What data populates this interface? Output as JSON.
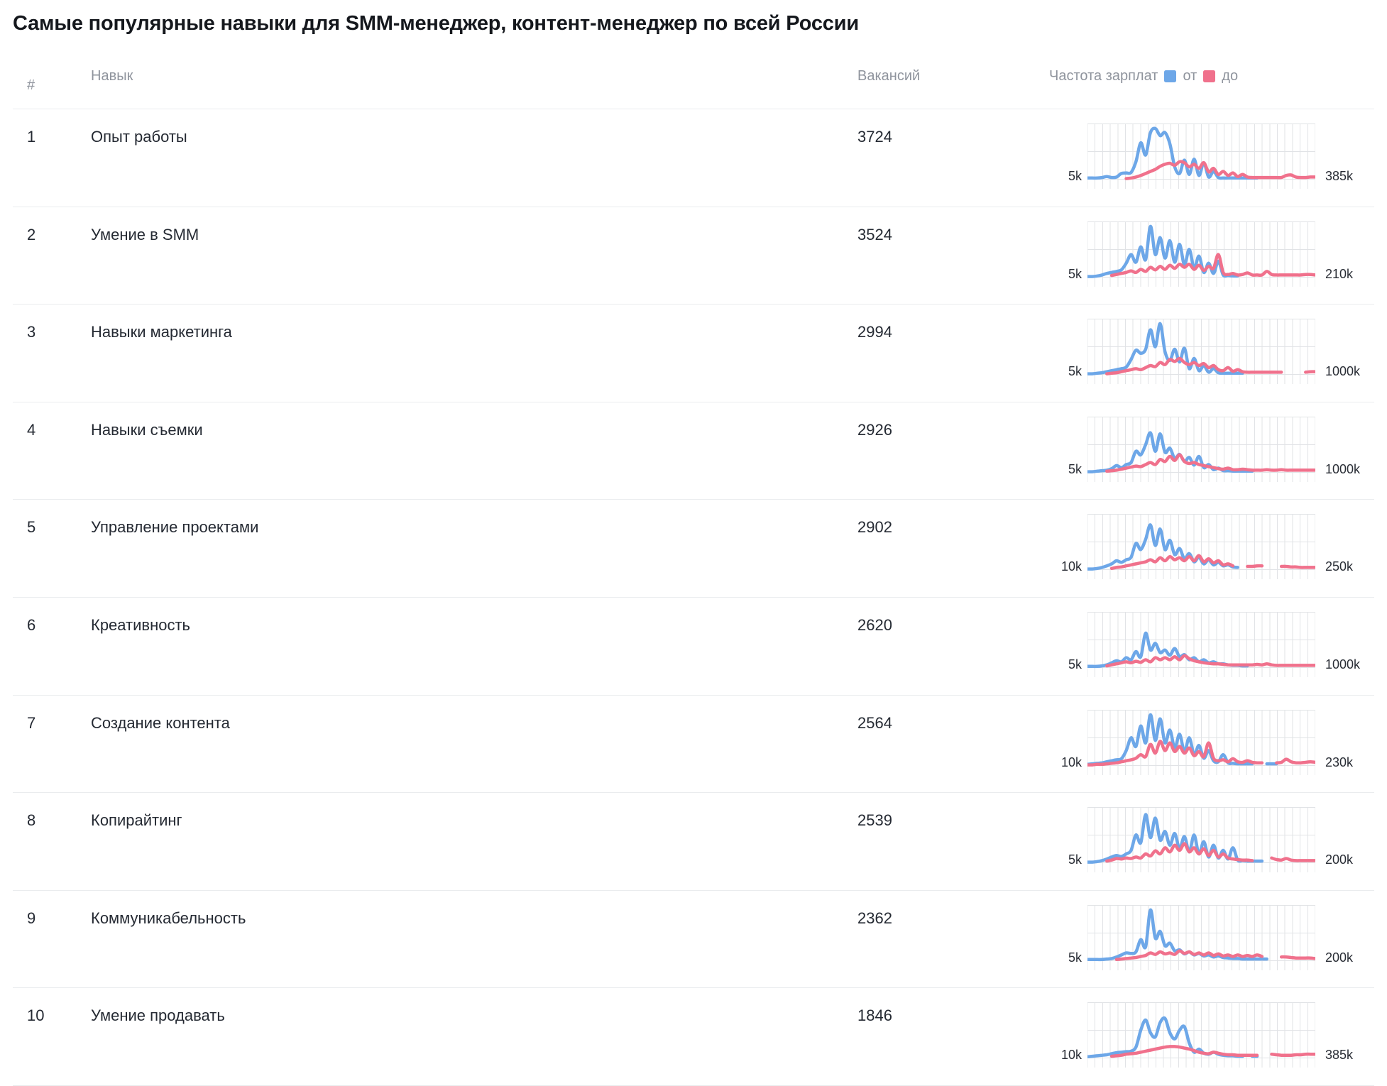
{
  "title": "Самые популярные навыки для SMM-менеджер, контент-менеджер по всей России",
  "headers": {
    "rank": "#",
    "skill": "Навык",
    "vacancies": "Вакансий",
    "salary_frequency": "Частота зарплат",
    "legend_from": "от",
    "legend_to": "до"
  },
  "colors": {
    "from_line": "#6da7e8",
    "to_line": "#f0718c",
    "grid": "#e1e3e6",
    "separator": "#eaecee",
    "header_text": "#8f949d",
    "body_text": "#252a33"
  },
  "chart_data": {
    "type": "line",
    "value_scale": "relative frequency 0-100 (percent of row maximum)",
    "legend": [
      "от",
      "до"
    ],
    "grid": true,
    "rows": [
      {
        "rank": 1,
        "skill": "Опыт работы",
        "vacancies": "3724",
        "salary_min_label": "5k",
        "salary_max_label": "385k",
        "from": [
          3,
          3,
          3,
          4,
          6,
          4,
          5,
          12,
          13,
          14,
          35,
          72,
          48,
          92,
          100,
          86,
          92,
          70,
          25,
          12,
          38,
          10,
          40,
          8,
          33,
          5,
          16,
          4,
          3,
          3,
          3,
          3,
          3,
          3,
          3,
          3,
          null,
          null,
          null,
          null,
          null,
          null,
          null,
          null,
          null,
          null,
          null,
          null
        ],
        "to": [
          null,
          null,
          null,
          null,
          null,
          null,
          null,
          null,
          2,
          3,
          5,
          8,
          12,
          16,
          20,
          26,
          30,
          32,
          28,
          35,
          33,
          25,
          30,
          22,
          33,
          15,
          22,
          10,
          16,
          8,
          13,
          6,
          10,
          5,
          4,
          4,
          4,
          4,
          4,
          4,
          4,
          8,
          9,
          5,
          4,
          4,
          5,
          5
        ]
      },
      {
        "rank": 2,
        "skill": "Умение в SMM",
        "vacancies": "3524",
        "salary_min_label": "5k",
        "salary_max_label": "210k",
        "from": [
          2,
          2,
          3,
          5,
          8,
          10,
          12,
          15,
          28,
          45,
          30,
          60,
          35,
          100,
          45,
          78,
          38,
          72,
          30,
          65,
          25,
          55,
          18,
          42,
          10,
          28,
          8,
          32,
          5,
          4,
          3,
          3,
          null,
          null,
          null,
          null,
          null,
          null,
          null,
          null,
          null,
          null,
          null,
          null,
          null,
          null,
          null,
          null
        ],
        "to": [
          null,
          null,
          null,
          null,
          null,
          4,
          6,
          8,
          10,
          13,
          10,
          16,
          12,
          20,
          15,
          22,
          16,
          24,
          18,
          26,
          20,
          26,
          16,
          24,
          14,
          22,
          18,
          45,
          10,
          6,
          8,
          5,
          6,
          9,
          5,
          5,
          5,
          12,
          6,
          5,
          5,
          5,
          5,
          5,
          5,
          6,
          6,
          5
        ]
      },
      {
        "rank": 3,
        "skill": "Навыки маркетинга",
        "vacancies": "2994",
        "salary_min_label": "5k",
        "salary_max_label": "1000k",
        "from": [
          2,
          2,
          3,
          4,
          6,
          8,
          10,
          12,
          15,
          30,
          48,
          42,
          50,
          88,
          55,
          100,
          45,
          28,
          50,
          25,
          52,
          12,
          32,
          8,
          18,
          5,
          12,
          4,
          3,
          3,
          3,
          3,
          3,
          null,
          null,
          null,
          null,
          null,
          null,
          null,
          null,
          null,
          null,
          null,
          null,
          null,
          null,
          null
        ],
        "to": [
          null,
          null,
          null,
          null,
          2,
          3,
          4,
          6,
          8,
          10,
          12,
          10,
          14,
          18,
          16,
          24,
          20,
          30,
          26,
          32,
          24,
          20,
          24,
          18,
          22,
          14,
          18,
          10,
          8,
          14,
          7,
          10,
          6,
          5,
          5,
          5,
          5,
          5,
          5,
          5,
          5,
          null,
          null,
          null,
          null,
          5,
          6,
          6
        ]
      },
      {
        "rank": 4,
        "skill": "Навыки съемки",
        "vacancies": "2926",
        "salary_min_label": "5k",
        "salary_max_label": "1000k",
        "from": [
          2,
          2,
          3,
          4,
          5,
          8,
          14,
          10,
          16,
          20,
          42,
          35,
          55,
          78,
          42,
          76,
          40,
          48,
          28,
          36,
          22,
          30,
          15,
          32,
          10,
          16,
          6,
          9,
          4,
          4,
          3,
          3,
          3,
          3,
          3,
          null,
          null,
          null,
          null,
          null,
          null,
          null,
          null,
          null,
          null,
          null,
          null,
          null
        ],
        "to": [
          null,
          null,
          null,
          null,
          3,
          4,
          5,
          7,
          9,
          11,
          13,
          12,
          16,
          20,
          16,
          26,
          22,
          32,
          24,
          35,
          22,
          18,
          20,
          16,
          14,
          12,
          10,
          8,
          7,
          9,
          6,
          6,
          7,
          6,
          5,
          5,
          5,
          6,
          5,
          5,
          6,
          5,
          5,
          5,
          5,
          5,
          5,
          5
        ]
      },
      {
        "rank": 5,
        "skill": "Управление проектами",
        "vacancies": "2902",
        "salary_min_label": "10k",
        "salary_max_label": "250k",
        "from": [
          2,
          2,
          3,
          5,
          8,
          12,
          18,
          15,
          20,
          25,
          52,
          40,
          60,
          88,
          48,
          80,
          40,
          58,
          30,
          42,
          22,
          32,
          16,
          25,
          12,
          20,
          10,
          15,
          8,
          10,
          6,
          5,
          null,
          null,
          null,
          null,
          null,
          null,
          null,
          null,
          null,
          null,
          null,
          null,
          null,
          null,
          null,
          null
        ],
        "to": [
          null,
          null,
          null,
          null,
          null,
          3,
          5,
          6,
          8,
          10,
          12,
          14,
          16,
          20,
          16,
          24,
          18,
          26,
          20,
          24,
          18,
          26,
          18,
          28,
          16,
          22,
          14,
          18,
          10,
          12,
          8,
          null,
          null,
          7,
          7,
          8,
          8,
          null,
          null,
          null,
          7,
          7,
          6,
          6,
          5,
          5,
          5,
          5
        ]
      },
      {
        "rank": 6,
        "skill": "Креативность",
        "vacancies": "2620",
        "salary_min_label": "5k",
        "salary_max_label": "1000k",
        "from": [
          3,
          3,
          3,
          4,
          6,
          10,
          14,
          12,
          20,
          16,
          32,
          22,
          68,
          35,
          48,
          30,
          35,
          25,
          38,
          22,
          26,
          16,
          20,
          12,
          16,
          10,
          12,
          8,
          8,
          6,
          5,
          5,
          4,
          4,
          null,
          null,
          null,
          null,
          null,
          null,
          null,
          null,
          null,
          null,
          null,
          null,
          null,
          null
        ],
        "to": [
          null,
          null,
          null,
          null,
          4,
          6,
          8,
          10,
          12,
          10,
          13,
          11,
          16,
          12,
          20,
          16,
          20,
          16,
          22,
          16,
          24,
          18,
          14,
          12,
          10,
          9,
          8,
          8,
          7,
          6,
          6,
          6,
          6,
          6,
          6,
          7,
          6,
          8,
          6,
          5,
          5,
          5,
          5,
          5,
          5,
          5,
          5,
          5
        ]
      },
      {
        "rank": 7,
        "skill": "Создание контента",
        "vacancies": "2564",
        "salary_min_label": "10k",
        "salary_max_label": "230k",
        "from": [
          3,
          4,
          5,
          6,
          8,
          10,
          12,
          14,
          30,
          55,
          38,
          78,
          45,
          100,
          50,
          92,
          45,
          70,
          35,
          62,
          28,
          55,
          22,
          40,
          15,
          30,
          10,
          8,
          22,
          6,
          5,
          4,
          4,
          4,
          4,
          null,
          null,
          4,
          4,
          4,
          null,
          null,
          null,
          null,
          null,
          null,
          null,
          null
        ],
        "to": [
          2,
          2,
          3,
          3,
          4,
          5,
          6,
          8,
          10,
          12,
          15,
          22,
          18,
          42,
          25,
          48,
          30,
          45,
          28,
          38,
          25,
          35,
          20,
          28,
          18,
          45,
          15,
          10,
          12,
          8,
          14,
          8,
          7,
          10,
          7,
          6,
          6,
          null,
          null,
          6,
          7,
          13,
          8,
          6,
          6,
          7,
          8,
          7
        ]
      },
      {
        "rank": 8,
        "skill": "Копирайтинг",
        "vacancies": "2539",
        "salary_min_label": "5k",
        "salary_max_label": "200k",
        "from": [
          2,
          2,
          3,
          5,
          8,
          12,
          15,
          13,
          18,
          25,
          55,
          40,
          95,
          50,
          88,
          45,
          62,
          35,
          58,
          28,
          52,
          22,
          55,
          18,
          42,
          12,
          35,
          10,
          25,
          8,
          30,
          6,
          5,
          4,
          4,
          4,
          4,
          null,
          null,
          null,
          null,
          null,
          null,
          null,
          null,
          null,
          null,
          null
        ],
        "to": [
          null,
          null,
          null,
          null,
          4,
          6,
          9,
          8,
          10,
          9,
          12,
          10,
          18,
          14,
          24,
          18,
          30,
          22,
          35,
          25,
          38,
          22,
          30,
          18,
          28,
          15,
          25,
          12,
          18,
          10,
          8,
          7,
          6,
          6,
          5,
          null,
          null,
          null,
          10,
          7,
          6,
          9,
          6,
          5,
          5,
          5,
          5,
          5
        ]
      },
      {
        "rank": 9,
        "skill": "Коммуникабельность",
        "vacancies": "2362",
        "salary_min_label": "5k",
        "salary_max_label": "200k",
        "from": [
          3,
          3,
          3,
          3,
          4,
          5,
          8,
          12,
          16,
          15,
          18,
          42,
          28,
          100,
          45,
          58,
          30,
          35,
          20,
          22,
          14,
          18,
          12,
          15,
          10,
          12,
          8,
          10,
          7,
          6,
          5,
          5,
          4,
          4,
          4,
          4,
          4,
          4,
          null,
          null,
          null,
          null,
          null,
          null,
          null,
          null,
          null,
          null
        ],
        "to": [
          null,
          null,
          null,
          null,
          null,
          null,
          3,
          4,
          5,
          6,
          7,
          9,
          11,
          16,
          13,
          18,
          14,
          16,
          13,
          20,
          15,
          18,
          13,
          16,
          12,
          16,
          11,
          14,
          10,
          12,
          9,
          12,
          9,
          11,
          9,
          12,
          9,
          null,
          null,
          null,
          8,
          8,
          7,
          6,
          6,
          6,
          6,
          5
        ]
      },
      {
        "rank": 10,
        "skill": "Умение продавать",
        "vacancies": "1846",
        "salary_min_label": "10k",
        "salary_max_label": "385k",
        "from": [
          3,
          4,
          5,
          6,
          7,
          9,
          11,
          12,
          13,
          14,
          22,
          55,
          75,
          50,
          42,
          70,
          78,
          50,
          38,
          55,
          62,
          30,
          12,
          18,
          10,
          8,
          12,
          8,
          6,
          5,
          5,
          4,
          4,
          null,
          4,
          4,
          null,
          null,
          null,
          null,
          null,
          null,
          null,
          null,
          null,
          null,
          null,
          null
        ],
        "to": [
          null,
          null,
          null,
          null,
          null,
          4,
          5,
          6,
          8,
          9,
          10,
          12,
          14,
          16,
          18,
          20,
          22,
          23,
          23,
          22,
          20,
          18,
          15,
          12,
          10,
          9,
          12,
          10,
          8,
          7,
          7,
          6,
          6,
          6,
          6,
          6,
          null,
          null,
          8,
          7,
          6,
          6,
          6,
          7,
          7,
          8,
          8,
          8
        ]
      }
    ]
  }
}
